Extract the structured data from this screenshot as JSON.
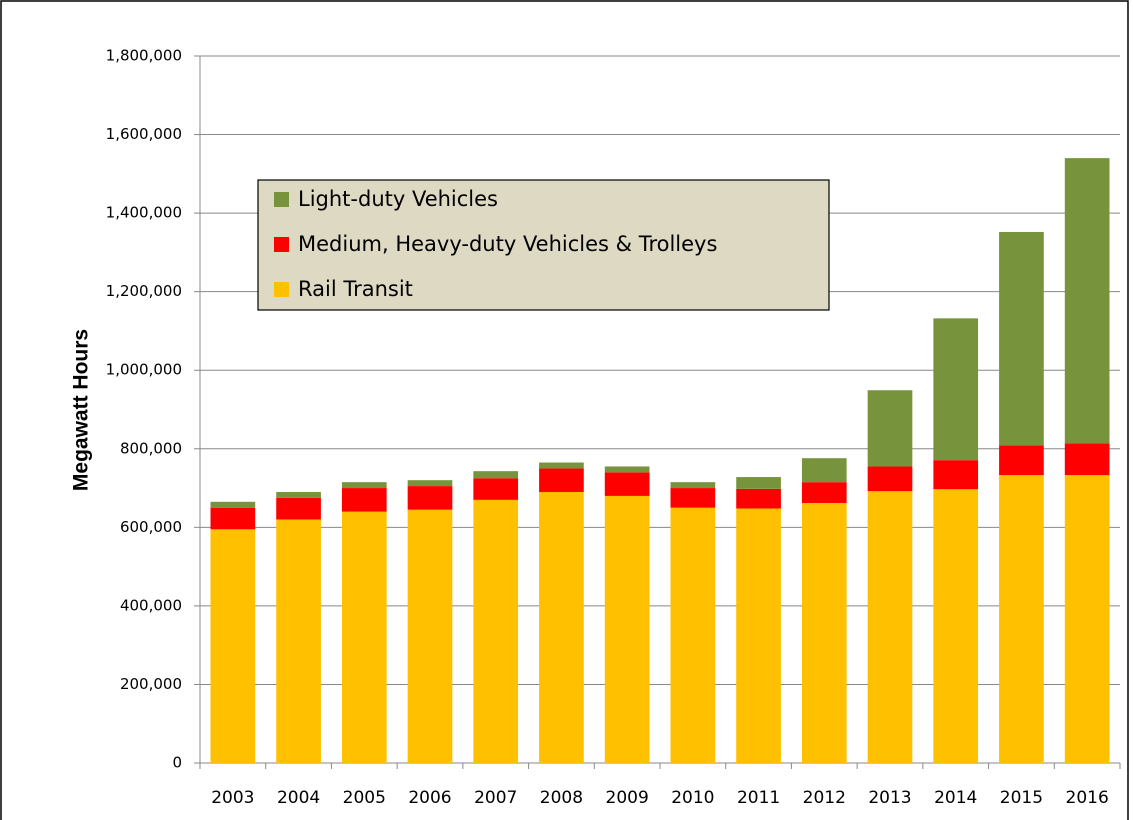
{
  "chart_data": {
    "type": "stacked_bar",
    "y_label": "Megawatt Hours",
    "categories": [
      "2003",
      "2004",
      "2005",
      "2006",
      "2007",
      "2008",
      "2009",
      "2010",
      "2011",
      "2012",
      "2013",
      "2014",
      "2015",
      "2016"
    ],
    "series": [
      {
        "name": "Light-duty Vehicles",
        "color": "#77933c",
        "values": [
          15000,
          15000,
          15000,
          15000,
          18000,
          15000,
          15000,
          15000,
          30000,
          61000,
          194000,
          361000,
          543000,
          726000
        ]
      },
      {
        "name": "Medium, Heavy-duty Vehicles & Trolleys",
        "color": "#ff0000",
        "values": [
          55000,
          55000,
          60000,
          60000,
          55000,
          60000,
          60000,
          50000,
          50000,
          53000,
          63000,
          74000,
          76000,
          81000
        ]
      },
      {
        "name": "Rail Transit",
        "color": "#ffc000",
        "values": [
          595000,
          620000,
          640000,
          645000,
          670000,
          690000,
          680000,
          650000,
          648000,
          662000,
          692000,
          697000,
          733000,
          733000
        ]
      }
    ],
    "ylim": [
      0,
      1800000
    ],
    "yticks": [
      0,
      {
        "value": 200000,
        "label": "200,000"
      },
      {
        "value": 400000,
        "label": "400,000"
      },
      {
        "value": 600000,
        "label": "600,000"
      },
      {
        "value": 800000,
        "label": "800,000"
      },
      {
        "value": 1000000,
        "label": "1,000,000"
      },
      {
        "value": 1200000,
        "label": "1,200,000"
      },
      {
        "value": 1400000,
        "label": "1,400,000"
      },
      {
        "value": 1600000,
        "label": "1,600,000"
      },
      {
        "value": 1800000,
        "label": "1,800,000"
      }
    ],
    "grid": true
  }
}
